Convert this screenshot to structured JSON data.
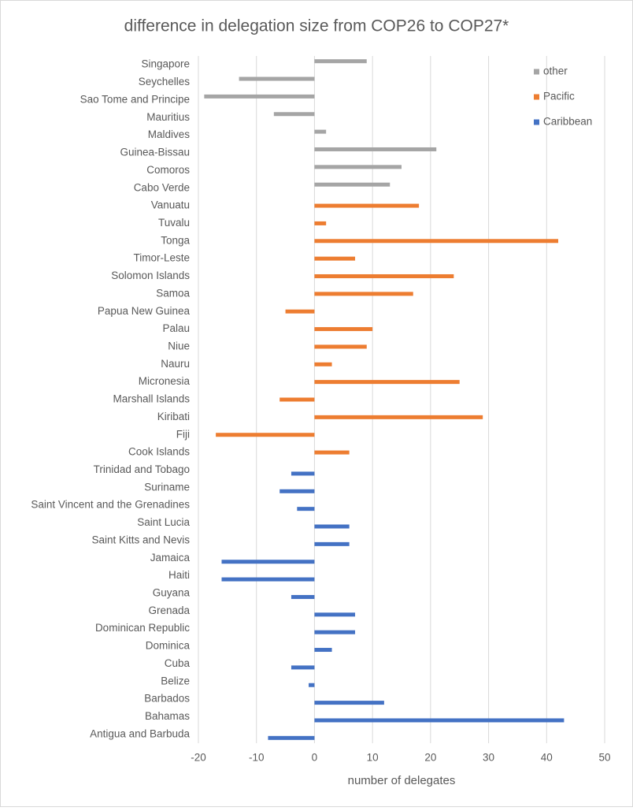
{
  "chart_data": {
    "type": "bar",
    "orientation": "horizontal",
    "title": "difference in delegation size from COP26 to COP27*",
    "x_label": "number of delegates",
    "categories": [
      "Singapore",
      "Seychelles",
      "Sao Tome and Principe",
      "Mauritius",
      "Maldives",
      "Guinea-Bissau",
      "Comoros",
      "Cabo Verde",
      "Vanuatu",
      "Tuvalu",
      "Tonga",
      "Timor-Leste",
      "Solomon Islands",
      "Samoa",
      "Papua New Guinea",
      "Palau",
      "Niue",
      "Nauru",
      "Micronesia",
      "Marshall Islands",
      "Kiribati",
      "Fiji",
      "Cook Islands",
      "Trinidad and Tobago",
      "Suriname",
      "Saint Vincent and the Grenadines",
      "Saint Lucia",
      "Saint Kitts and Nevis",
      "Jamaica",
      "Haiti",
      "Guyana",
      "Grenada",
      "Dominican Republic",
      "Dominica",
      "Cuba",
      "Belize",
      "Barbados",
      "Bahamas",
      "Antigua and Barbuda"
    ],
    "series": [
      {
        "name": "other",
        "color": "#a5a5a5",
        "values": [
          9,
          -13,
          -19,
          -7,
          2,
          21,
          15,
          13,
          null,
          null,
          null,
          null,
          null,
          null,
          null,
          null,
          null,
          null,
          null,
          null,
          null,
          null,
          null,
          null,
          null,
          null,
          null,
          null,
          null,
          null,
          null,
          null,
          null,
          null,
          null,
          null,
          null,
          null,
          null
        ]
      },
      {
        "name": "Pacific",
        "color": "#ed7d31",
        "values": [
          null,
          null,
          null,
          null,
          null,
          null,
          null,
          null,
          18,
          2,
          42,
          7,
          24,
          17,
          -5,
          10,
          9,
          3,
          25,
          -6,
          29,
          -17,
          6,
          null,
          null,
          null,
          null,
          null,
          null,
          null,
          null,
          null,
          null,
          null,
          null,
          null,
          null,
          null,
          null
        ]
      },
      {
        "name": "Caribbean",
        "color": "#4472c4",
        "values": [
          null,
          null,
          null,
          null,
          null,
          null,
          null,
          null,
          null,
          null,
          null,
          null,
          null,
          null,
          null,
          null,
          null,
          null,
          null,
          null,
          null,
          null,
          null,
          -4,
          -6,
          -3,
          6,
          6,
          -16,
          -16,
          -4,
          7,
          7,
          3,
          -4,
          -1,
          12,
          43,
          -8
        ]
      }
    ],
    "xlim": [
      -20,
      50
    ],
    "xticks": [
      -20,
      -10,
      0,
      10,
      20,
      30,
      40,
      50
    ],
    "grid": true,
    "legend": "top-right"
  }
}
